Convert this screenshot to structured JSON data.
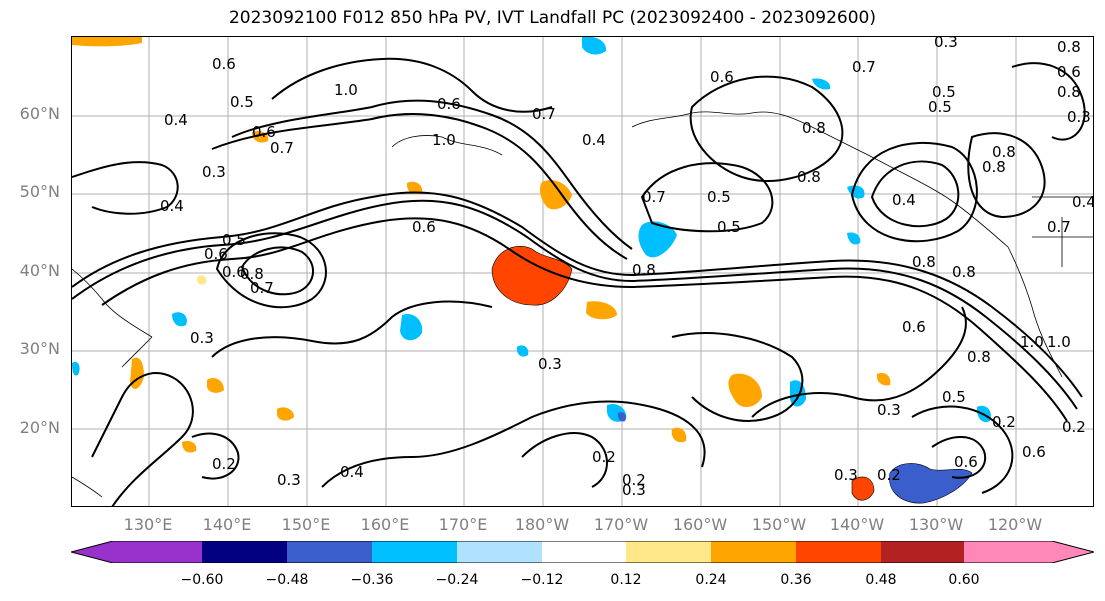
{
  "title": "2023092100 F012 850 hPa PV, IVT Landfall PC (2023092400 - 2023092600)",
  "lat_labels": [
    "60°N",
    "50°N",
    "40°N",
    "30°N",
    "20°N"
  ],
  "lon_labels": [
    "130°E",
    "140°E",
    "150°E",
    "160°E",
    "170°E",
    "180°W",
    "170°W",
    "160°W",
    "150°W",
    "140°W",
    "130°W",
    "120°W"
  ],
  "colorbar": {
    "ticks": [
      "−0.60",
      "−0.48",
      "−0.36",
      "−0.24",
      "−0.12",
      "0.12",
      "0.24",
      "0.36",
      "0.48",
      "0.60"
    ],
    "colors": [
      "#9932CC",
      "#000080",
      "#3A5FCD",
      "#00BFFF",
      "#B0E2FF",
      "#FFFFFF",
      "#FFE88A",
      "#FFA500",
      "#FF4500",
      "#B22222",
      "#FF88B8"
    ]
  },
  "contour_labels": [
    "0.6",
    "0.5",
    "1.0",
    "0.4",
    "0.7",
    "0.3",
    "0.4",
    "0.5",
    "0.6",
    "0.8",
    "0.7",
    "0.6",
    "0.8",
    "0.7",
    "0.5",
    "0.5",
    "0.6",
    "0.8",
    "0.8",
    "0.4",
    "0.8",
    "0.6",
    "0.8",
    "1.0",
    "0.3",
    "0.3",
    "0.2",
    "0.3",
    "0.4",
    "0.2",
    "0.2",
    "0.3",
    "0.3",
    "0.2",
    "0.5",
    "0.2",
    "0.6",
    "0.3",
    "0.6",
    "0.8",
    "0.7",
    "0.5",
    "0.8",
    "0.3",
    "1.0",
    "0.3",
    "0.8",
    "0.6",
    "0.4",
    "0.2",
    "0.8",
    "0.5",
    "0.7",
    "0.6",
    "1.0",
    "0.6",
    "0.6",
    "0.8",
    "0.4",
    "0.7"
  ]
}
